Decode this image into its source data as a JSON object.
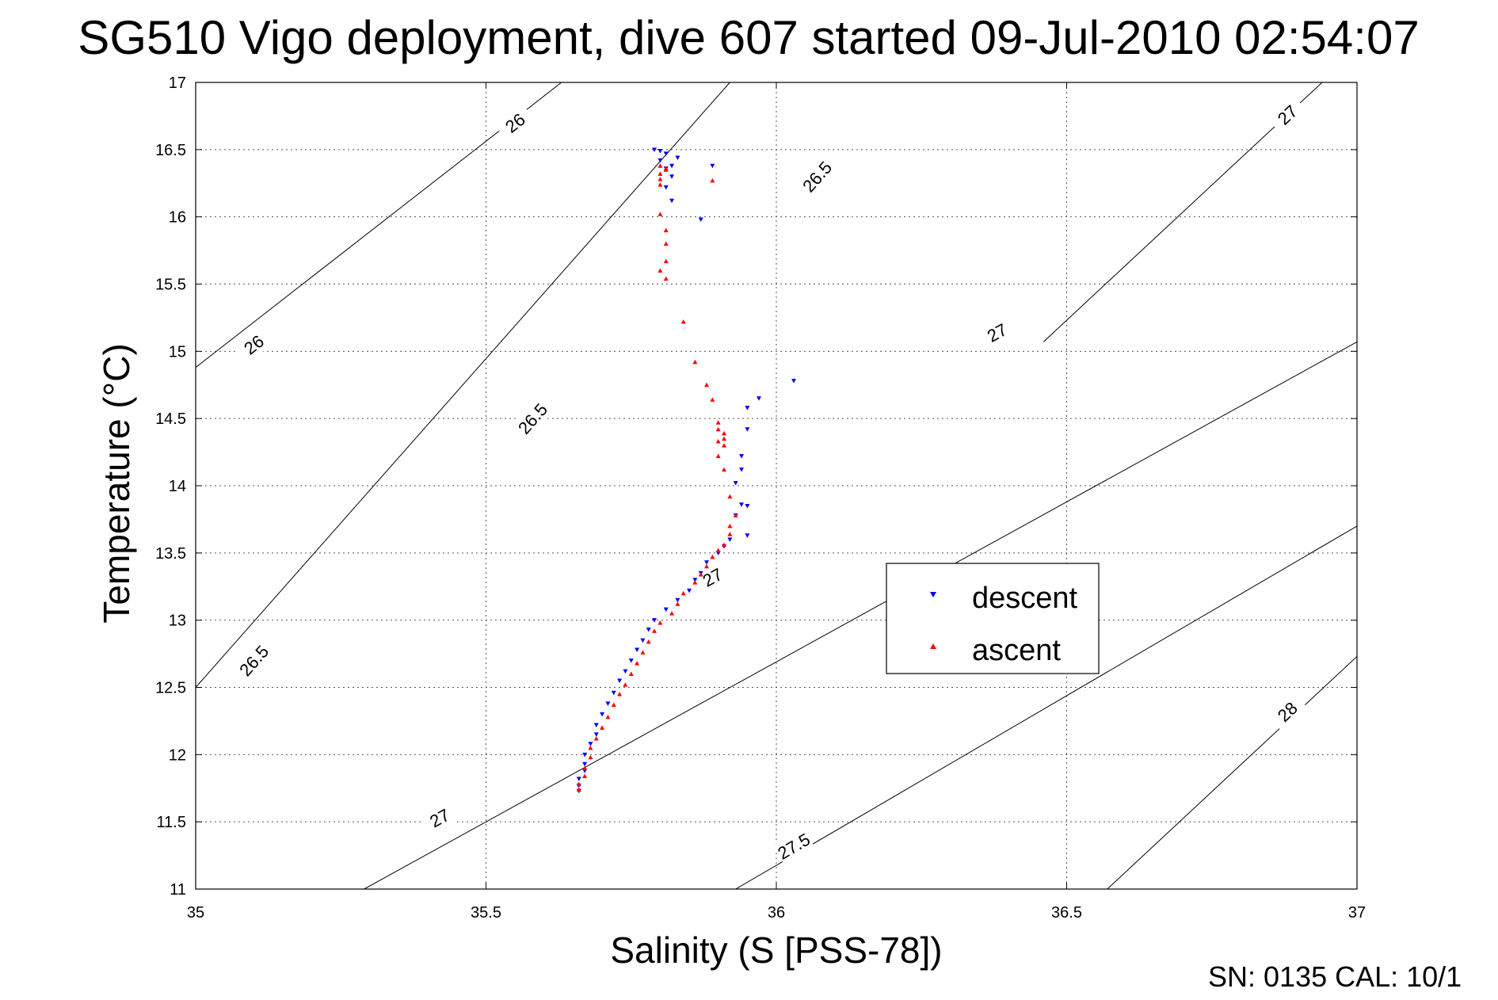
{
  "chart_data": {
    "type": "scatter",
    "title": "SG510 Vigo deployment, dive 607 started 09-Jul-2010 02:54:07",
    "xlabel": "Salinity (S [PSS-78])",
    "ylabel": "Temperature (°C)",
    "xlim": [
      35,
      37
    ],
    "ylim": [
      11,
      17
    ],
    "x_ticks": [
      "35",
      "35.5",
      "36",
      "36.5",
      "37"
    ],
    "y_ticks": [
      "11",
      "11.5",
      "12",
      "12.5",
      "13",
      "13.5",
      "14",
      "14.5",
      "15",
      "15.5",
      "16",
      "16.5",
      "17"
    ],
    "grid": true,
    "legend_position": "inside-right",
    "footer": "SN: 0135  CAL: 10/1",
    "series": [
      {
        "name": "descent",
        "color": "#0000ff",
        "marker": "triangle-down",
        "points": [
          [
            35.79,
            16.5
          ],
          [
            35.8,
            16.49
          ],
          [
            35.81,
            16.47
          ],
          [
            35.8,
            16.42
          ],
          [
            35.83,
            16.44
          ],
          [
            35.82,
            16.38
          ],
          [
            35.81,
            16.36
          ],
          [
            35.82,
            16.3
          ],
          [
            35.81,
            16.22
          ],
          [
            35.82,
            16.12
          ],
          [
            35.87,
            15.98
          ],
          [
            35.89,
            16.38
          ],
          [
            36.03,
            14.78
          ],
          [
            35.97,
            14.65
          ],
          [
            35.95,
            14.58
          ],
          [
            35.95,
            14.42
          ],
          [
            35.94,
            14.22
          ],
          [
            35.94,
            14.12
          ],
          [
            35.93,
            14.02
          ],
          [
            35.94,
            13.86
          ],
          [
            35.95,
            13.85
          ],
          [
            35.93,
            13.78
          ],
          [
            35.95,
            13.63
          ],
          [
            35.92,
            13.6
          ],
          [
            35.91,
            13.55
          ],
          [
            35.9,
            13.5
          ],
          [
            35.88,
            13.43
          ],
          [
            35.87,
            13.35
          ],
          [
            35.86,
            13.3
          ],
          [
            35.85,
            13.22
          ],
          [
            35.83,
            13.15
          ],
          [
            35.81,
            13.08
          ],
          [
            35.79,
            13.0
          ],
          [
            35.78,
            12.93
          ],
          [
            35.77,
            12.85
          ],
          [
            35.76,
            12.78
          ],
          [
            35.75,
            12.7
          ],
          [
            35.74,
            12.62
          ],
          [
            35.73,
            12.55
          ],
          [
            35.72,
            12.46
          ],
          [
            35.71,
            12.38
          ],
          [
            35.7,
            12.3
          ],
          [
            35.69,
            12.22
          ],
          [
            35.69,
            12.15
          ],
          [
            35.68,
            12.08
          ],
          [
            35.67,
            12.0
          ],
          [
            35.67,
            11.93
          ],
          [
            35.67,
            11.88
          ],
          [
            35.66,
            11.82
          ],
          [
            35.66,
            11.77
          ],
          [
            35.66,
            11.73
          ]
        ]
      },
      {
        "name": "ascent",
        "color": "#ff0000",
        "marker": "triangle-up",
        "points": [
          [
            35.8,
            16.38
          ],
          [
            35.81,
            16.35
          ],
          [
            35.8,
            16.32
          ],
          [
            35.8,
            16.28
          ],
          [
            35.81,
            16.36
          ],
          [
            35.8,
            16.24
          ],
          [
            35.8,
            16.02
          ],
          [
            35.81,
            15.9
          ],
          [
            35.81,
            15.8
          ],
          [
            35.81,
            15.67
          ],
          [
            35.8,
            15.6
          ],
          [
            35.81,
            15.54
          ],
          [
            35.89,
            16.27
          ],
          [
            35.84,
            15.22
          ],
          [
            35.86,
            14.92
          ],
          [
            35.88,
            14.75
          ],
          [
            35.89,
            14.64
          ],
          [
            35.9,
            14.47
          ],
          [
            35.9,
            14.42
          ],
          [
            35.91,
            14.39
          ],
          [
            35.91,
            14.35
          ],
          [
            35.9,
            14.33
          ],
          [
            35.91,
            14.3
          ],
          [
            35.9,
            14.22
          ],
          [
            35.91,
            14.12
          ],
          [
            35.92,
            13.92
          ],
          [
            35.93,
            13.78
          ],
          [
            35.92,
            13.7
          ],
          [
            35.92,
            13.64
          ],
          [
            35.91,
            13.56
          ],
          [
            35.9,
            13.52
          ],
          [
            35.89,
            13.47
          ],
          [
            35.88,
            13.4
          ],
          [
            35.87,
            13.34
          ],
          [
            35.86,
            13.28
          ],
          [
            35.84,
            13.2
          ],
          [
            35.83,
            13.12
          ],
          [
            35.82,
            13.05
          ],
          [
            35.8,
            12.98
          ],
          [
            35.79,
            12.92
          ],
          [
            35.78,
            12.84
          ],
          [
            35.77,
            12.76
          ],
          [
            35.76,
            12.68
          ],
          [
            35.75,
            12.6
          ],
          [
            35.74,
            12.52
          ],
          [
            35.73,
            12.45
          ],
          [
            35.72,
            12.37
          ],
          [
            35.71,
            12.28
          ],
          [
            35.7,
            12.2
          ],
          [
            35.69,
            12.12
          ],
          [
            35.68,
            12.05
          ],
          [
            35.68,
            11.98
          ],
          [
            35.67,
            11.9
          ],
          [
            35.67,
            11.84
          ],
          [
            35.66,
            11.78
          ],
          [
            35.66,
            11.74
          ]
        ]
      }
    ],
    "contours": [
      {
        "label": "26",
        "points": [
          [
            35.0,
            14.88
          ],
          [
            35.63,
            17.0
          ]
        ],
        "label_positions": [
          [
            35.1,
            15.05
          ],
          [
            35.55,
            16.7
          ]
        ]
      },
      {
        "label": "26.5",
        "points": [
          [
            35.0,
            12.5
          ],
          [
            35.92,
            17.0
          ]
        ],
        "label_positions": [
          [
            35.1,
            12.7
          ],
          [
            35.58,
            14.5
          ],
          [
            36.07,
            16.3
          ]
        ]
      },
      {
        "label": "27",
        "points": [
          [
            35.29,
            11.0
          ],
          [
            37.0,
            15.07
          ]
        ],
        "label_positions": [
          [
            35.42,
            11.53
          ],
          [
            35.89,
            13.32
          ],
          [
            36.38,
            15.14
          ]
        ]
      },
      {
        "label": "27.5",
        "points": [
          [
            35.93,
            11.0
          ],
          [
            37.0,
            13.7
          ]
        ],
        "label_positions": [
          [
            36.03,
            11.32
          ]
        ]
      },
      {
        "label": "27",
        "points": [
          [
            36.46,
            15.07
          ],
          [
            36.94,
            17.0
          ]
        ],
        "label_positions": [
          [
            36.88,
            16.76
          ]
        ]
      },
      {
        "label": "28",
        "points": [
          [
            36.57,
            11.0
          ],
          [
            37.0,
            12.73
          ]
        ],
        "label_positions": [
          [
            36.88,
            12.32
          ]
        ]
      }
    ]
  }
}
